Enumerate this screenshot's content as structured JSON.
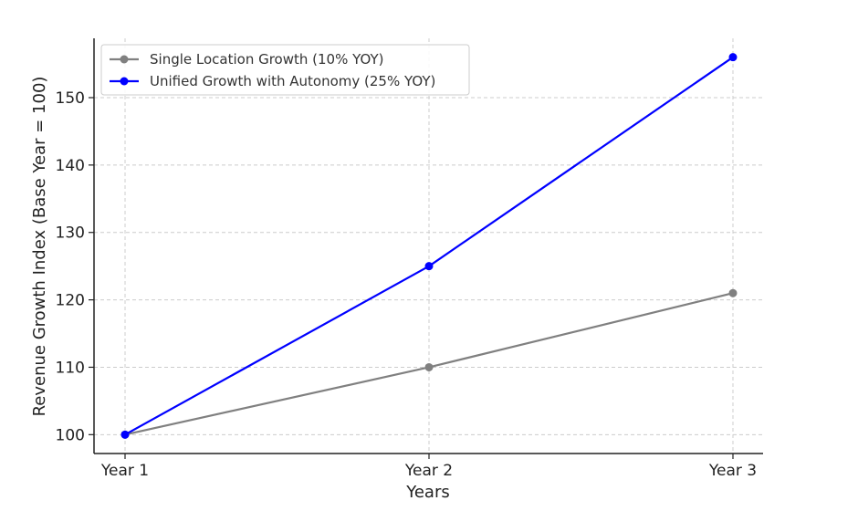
{
  "chart_data": {
    "type": "line",
    "categories": [
      "Year 1",
      "Year 2",
      "Year 3"
    ],
    "series": [
      {
        "name": "Single Location Growth (10% YOY)",
        "values": [
          100,
          110,
          121
        ],
        "color": "#808080"
      },
      {
        "name": "Unified Growth with Autonomy (25% YOY)",
        "values": [
          100,
          125,
          156
        ],
        "color": "#0000ff"
      }
    ],
    "title": "",
    "xlabel": "Years",
    "ylabel": "Revenue Growth Index (Base Year = 100)",
    "ylim": [
      97.2,
      158.8
    ],
    "yticks": [
      100,
      110,
      120,
      130,
      140,
      150
    ],
    "grid": true,
    "legend_position": "top-left"
  }
}
